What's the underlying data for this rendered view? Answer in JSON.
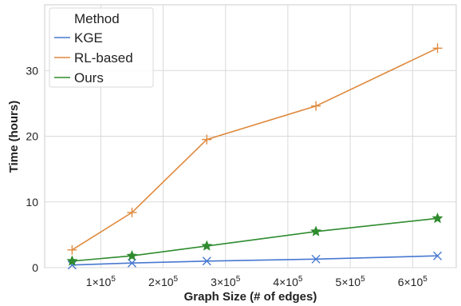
{
  "chart_data": {
    "type": "line",
    "xlabel": "Graph Size (# of edges)",
    "ylabel": "Time (hours)",
    "xlim": [
      10000,
      670000
    ],
    "ylim": [
      0,
      40
    ],
    "grid": true,
    "x_ticks": [
      100000,
      200000,
      300000,
      400000,
      500000,
      600000
    ],
    "x_tick_labels": [
      {
        "base": "1×10",
        "exp": "5"
      },
      {
        "base": "2×10",
        "exp": "5"
      },
      {
        "base": "3×10",
        "exp": "5"
      },
      {
        "base": "4×10",
        "exp": "5"
      },
      {
        "base": "5×10",
        "exp": "5"
      },
      {
        "base": "6×10",
        "exp": "5"
      }
    ],
    "y_ticks": [
      0,
      10,
      20,
      30
    ],
    "y_tick_labels": [
      "0",
      "10",
      "20",
      "30"
    ],
    "legend": {
      "title": "Method",
      "placement": "top-left"
    },
    "x": [
      54000,
      150000,
      270000,
      445000,
      640000
    ],
    "series": [
      {
        "name": "KGE",
        "color": "#4878d0",
        "marker": "x",
        "values": [
          0.4,
          0.7,
          1.0,
          1.3,
          1.8
        ]
      },
      {
        "name": "RL-based",
        "color": "#df8a3e",
        "marker": "plus",
        "values": [
          2.7,
          8.4,
          19.5,
          24.6,
          33.4
        ]
      },
      {
        "name": "Ours",
        "color": "#2e8b2e",
        "marker": "star",
        "values": [
          1.0,
          1.8,
          3.3,
          5.5,
          7.5
        ]
      }
    ]
  }
}
